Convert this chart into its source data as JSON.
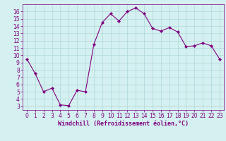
{
  "x": [
    0,
    1,
    2,
    3,
    4,
    5,
    6,
    7,
    8,
    9,
    10,
    11,
    12,
    13,
    14,
    15,
    16,
    17,
    18,
    19,
    20,
    21,
    22,
    23
  ],
  "y": [
    9.5,
    7.5,
    5.0,
    5.5,
    3.2,
    3.1,
    5.2,
    5.0,
    11.5,
    14.5,
    15.7,
    14.7,
    16.0,
    16.5,
    15.7,
    13.7,
    13.3,
    13.8,
    13.2,
    11.2,
    11.3,
    11.7,
    11.3,
    9.5
  ],
  "line_color": "#800080",
  "marker": "D",
  "marker_size": 2,
  "xlabel": "Windchill (Refroidissement éolien,°C)",
  "bg_color": "#d4f0f0",
  "grid_color": "#b0d8d8",
  "ylim": [
    2.5,
    17.0
  ],
  "xlim": [
    -0.5,
    23.5
  ],
  "yticks": [
    3,
    4,
    5,
    6,
    7,
    8,
    9,
    10,
    11,
    12,
    13,
    14,
    15,
    16
  ],
  "xticks": [
    0,
    1,
    2,
    3,
    4,
    5,
    6,
    7,
    8,
    9,
    10,
    11,
    12,
    13,
    14,
    15,
    16,
    17,
    18,
    19,
    20,
    21,
    22,
    23
  ],
  "tick_color": "#800080",
  "label_color": "#800080",
  "label_fontsize": 6,
  "tick_fontsize": 5.5
}
